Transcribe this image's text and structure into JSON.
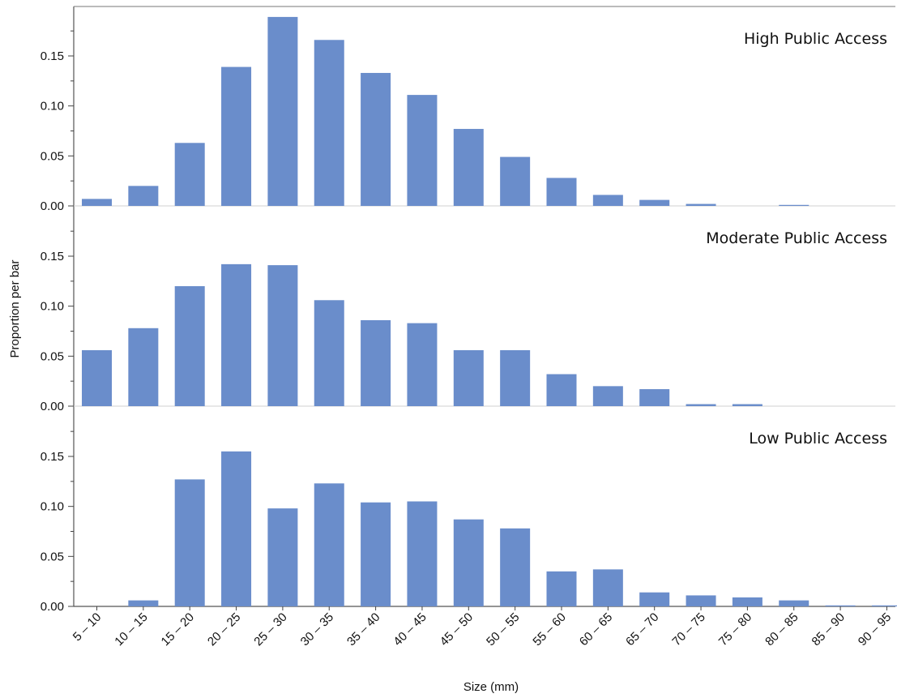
{
  "chart_data": {
    "type": "bar",
    "xlabel": "Size (mm)",
    "ylabel": "Proportion per bar",
    "ylim": [
      0,
      0.19
    ],
    "yticks": [
      "0.00",
      "0.05",
      "0.10",
      "0.15"
    ],
    "bar_color": "#6a8dcb",
    "grid": false,
    "categories": [
      "5 – 10",
      "10 – 15",
      "15 – 20",
      "20 – 25",
      "25 – 30",
      "30 – 35",
      "35 – 40",
      "40 – 45",
      "45 – 50",
      "50 – 55",
      "55 – 60",
      "60 – 65",
      "65 – 70",
      "70 – 75",
      "75 – 80",
      "80 – 85",
      "85 – 90",
      "90 – 95"
    ],
    "series": [
      {
        "name": "High Public Access",
        "values": [
          0.007,
          0.02,
          0.063,
          0.139,
          0.189,
          0.166,
          0.133,
          0.111,
          0.077,
          0.049,
          0.028,
          0.011,
          0.006,
          0.002,
          0.0,
          0.001,
          0.0,
          0.0
        ]
      },
      {
        "name": "Moderate Public Access",
        "values": [
          0.056,
          0.078,
          0.12,
          0.142,
          0.141,
          0.106,
          0.086,
          0.083,
          0.056,
          0.056,
          0.032,
          0.02,
          0.017,
          0.002,
          0.002,
          0.0,
          0.0,
          0.0
        ]
      },
      {
        "name": "Low Public Access",
        "values": [
          0.0,
          0.006,
          0.127,
          0.155,
          0.098,
          0.123,
          0.104,
          0.105,
          0.087,
          0.078,
          0.035,
          0.037,
          0.014,
          0.011,
          0.009,
          0.006,
          0.001,
          0.001
        ]
      }
    ]
  }
}
